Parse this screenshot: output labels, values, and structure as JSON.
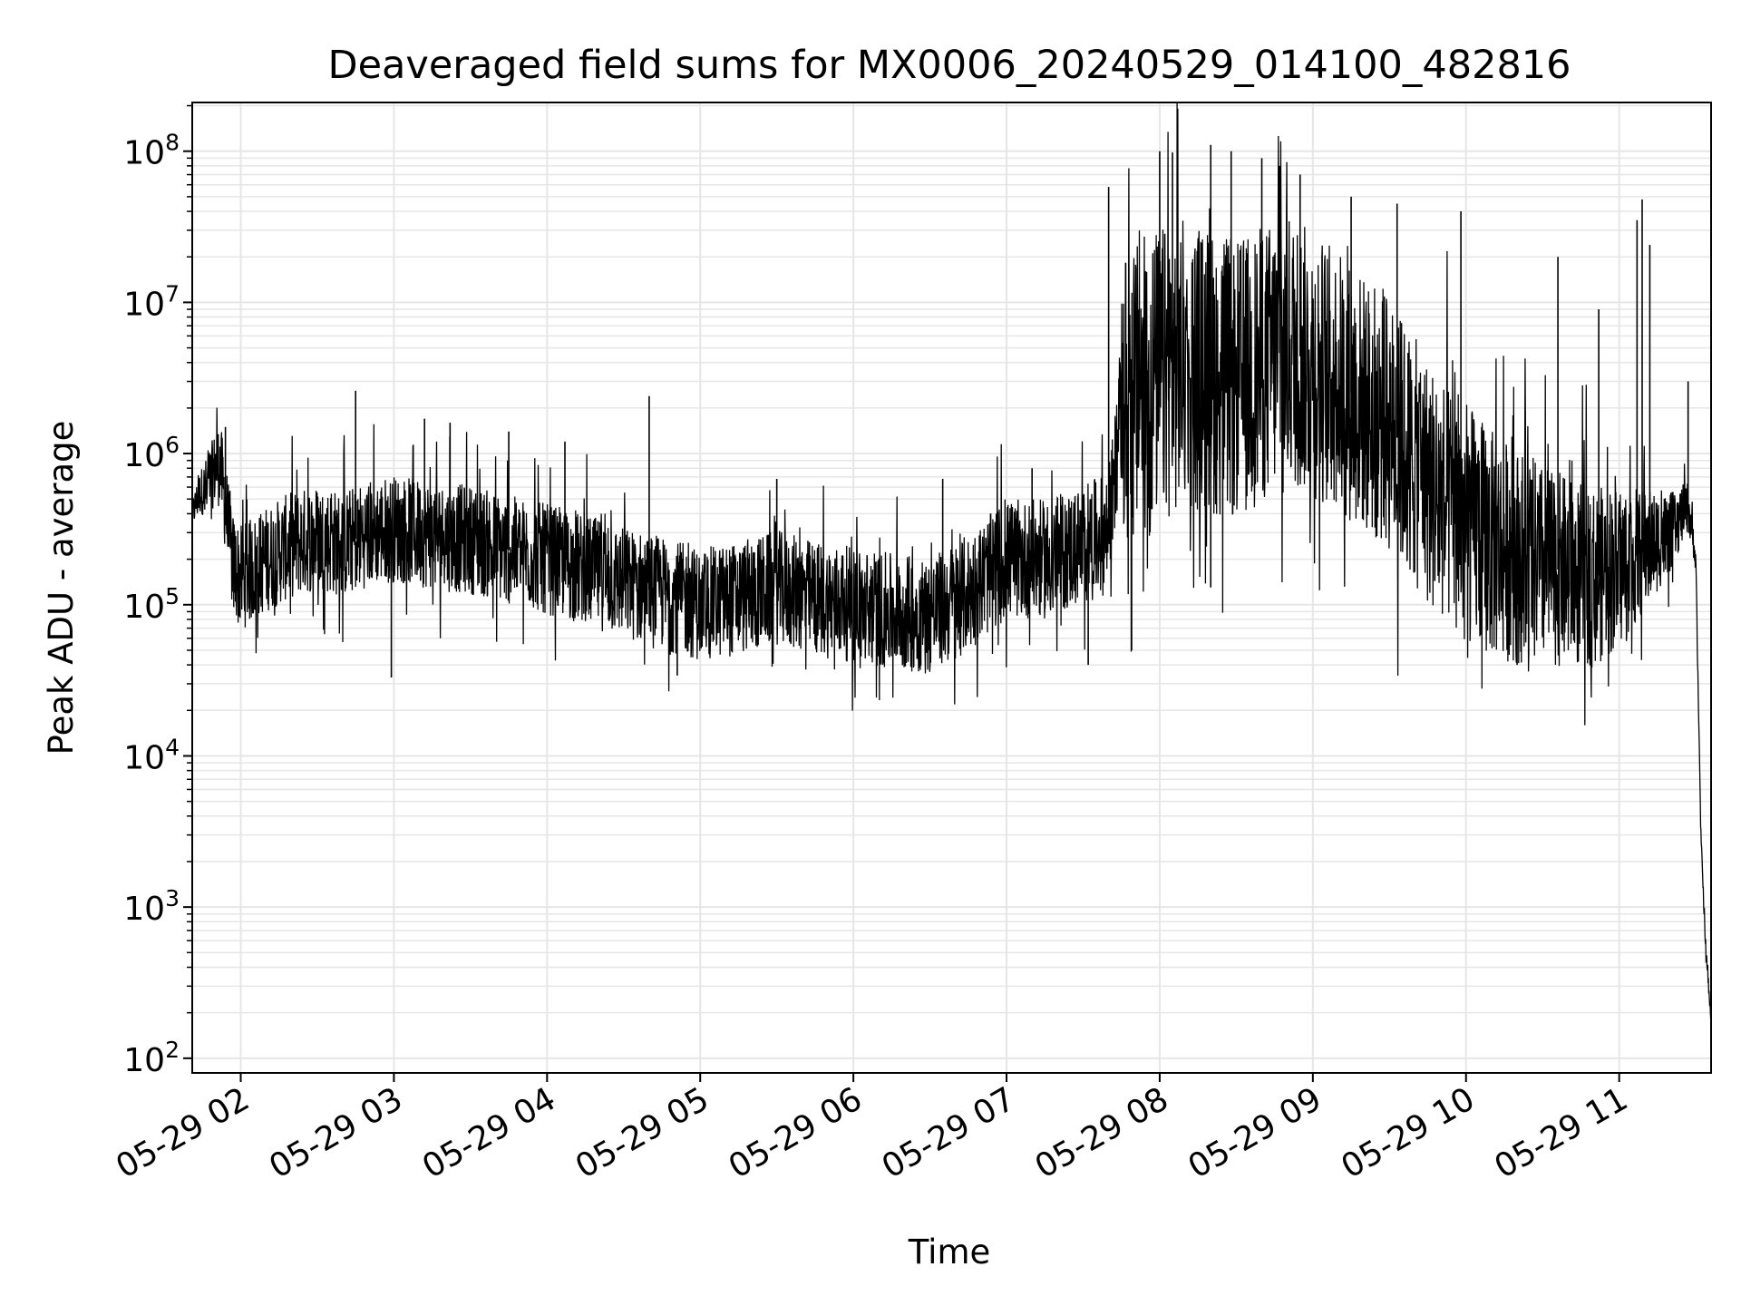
{
  "chart_data": {
    "type": "line",
    "title": "Deaveraged field sums for MX0006_20240529_014100_482816",
    "xlabel": "Time",
    "ylabel": "Peak ADU - average",
    "yscale": "log",
    "ylim": [
      80,
      210000000
    ],
    "xlim": [
      "2024-05-29 01:41",
      "2024-05-29 11:36"
    ],
    "grid": true,
    "line_color": "#000000",
    "grid_color": "#e6e6e6",
    "xticks": [
      "05-29 02",
      "05-29 03",
      "05-29 04",
      "05-29 05",
      "05-29 06",
      "05-29 07",
      "05-29 08",
      "05-29 09",
      "05-29 10",
      "05-29 11"
    ],
    "yticks": [
      {
        "value": 100,
        "base": "10",
        "exp": "2"
      },
      {
        "value": 1000,
        "base": "10",
        "exp": "3"
      },
      {
        "value": 10000,
        "base": "10",
        "exp": "4"
      },
      {
        "value": 100000,
        "base": "10",
        "exp": "5"
      },
      {
        "value": 1000000,
        "base": "10",
        "exp": "6"
      },
      {
        "value": 10000000,
        "base": "10",
        "exp": "7"
      },
      {
        "value": 100000000,
        "base": "10",
        "exp": "8"
      }
    ],
    "series": [
      {
        "points": [
          [
            "2024-05-29 01:41",
            400000
          ],
          [
            "2024-05-29 01:44",
            550000
          ],
          [
            "2024-05-29 01:47",
            620000
          ],
          [
            "2024-05-29 01:50",
            800000
          ],
          [
            "2024-05-29 01:52",
            850000
          ],
          [
            "2024-05-29 01:54",
            450000
          ],
          [
            "2024-05-29 01:57",
            180000
          ],
          [
            "2024-05-29 02:00",
            150000
          ],
          [
            "2024-05-29 02:10",
            200000
          ],
          [
            "2024-05-29 02:20",
            250000
          ],
          [
            "2024-05-29 02:30",
            280000
          ],
          [
            "2024-05-29 02:40",
            250000
          ],
          [
            "2024-05-29 02:50",
            300000
          ],
          [
            "2024-05-29 03:00",
            320000
          ],
          [
            "2024-05-29 03:10",
            300000
          ],
          [
            "2024-05-29 03:20",
            280000
          ],
          [
            "2024-05-29 03:30",
            270000
          ],
          [
            "2024-05-29 03:45",
            230000
          ],
          [
            "2024-05-29 04:00",
            200000
          ],
          [
            "2024-05-29 04:15",
            170000
          ],
          [
            "2024-05-29 04:30",
            140000
          ],
          [
            "2024-05-29 04:45",
            120000
          ],
          [
            "2024-05-29 05:00",
            100000
          ],
          [
            "2024-05-29 05:15",
            110000
          ],
          [
            "2024-05-29 05:30",
            130000
          ],
          [
            "2024-05-29 05:45",
            110000
          ],
          [
            "2024-05-29 06:00",
            100000
          ],
          [
            "2024-05-29 06:15",
            90000
          ],
          [
            "2024-05-29 06:30",
            85000
          ],
          [
            "2024-05-29 06:45",
            120000
          ],
          [
            "2024-05-29 07:00",
            200000
          ],
          [
            "2024-05-29 07:15",
            200000
          ],
          [
            "2024-05-29 07:30",
            250000
          ],
          [
            "2024-05-29 07:40",
            300000
          ],
          [
            "2024-05-29 07:45",
            2000000
          ],
          [
            "2024-05-29 07:55",
            3000000
          ],
          [
            "2024-05-29 08:10",
            4000000
          ],
          [
            "2024-05-29 08:30",
            3000000
          ],
          [
            "2024-05-29 08:50",
            5000000
          ],
          [
            "2024-05-29 09:10",
            3000000
          ],
          [
            "2024-05-29 09:30",
            1500000
          ],
          [
            "2024-05-29 09:50",
            500000
          ],
          [
            "2024-05-29 10:10",
            250000
          ],
          [
            "2024-05-29 10:30",
            180000
          ],
          [
            "2024-05-29 10:50",
            150000
          ],
          [
            "2024-05-29 11:05",
            200000
          ],
          [
            "2024-05-29 11:20",
            300000
          ],
          [
            "2024-05-29 11:27",
            450000
          ],
          [
            "2024-05-29 11:30",
            200000
          ],
          [
            "2024-05-29 11:32",
            3000
          ],
          [
            "2024-05-29 11:34",
            500
          ],
          [
            "2024-05-29 11:36",
            180
          ]
        ],
        "spikes": [
          [
            "2024-05-29 01:54",
            1500000
          ],
          [
            "2024-05-29 02:45",
            2600000
          ],
          [
            "2024-05-29 02:59",
            33000
          ],
          [
            "2024-05-29 03:12",
            1700000
          ],
          [
            "2024-05-29 03:22",
            1600000
          ],
          [
            "2024-05-29 03:45",
            1400000
          ],
          [
            "2024-05-29 04:07",
            1200000
          ],
          [
            "2024-05-29 04:40",
            2400000
          ],
          [
            "2024-05-29 04:51",
            34000
          ],
          [
            "2024-05-29 05:30",
            680000
          ],
          [
            "2024-05-29 06:35",
            680000
          ],
          [
            "2024-05-29 07:10",
            800000
          ],
          [
            "2024-05-29 07:32",
            40000
          ],
          [
            "2024-05-29 07:40",
            58000000
          ],
          [
            "2024-05-29 07:49",
            50000
          ],
          [
            "2024-05-29 08:00",
            100000000
          ],
          [
            "2024-05-29 08:05",
            98000000
          ],
          [
            "2024-05-29 08:20",
            110000000
          ],
          [
            "2024-05-29 08:28",
            100000000
          ],
          [
            "2024-05-29 08:40",
            90000000
          ],
          [
            "2024-05-29 08:47",
            80000000
          ],
          [
            "2024-05-29 08:55",
            70000000
          ],
          [
            "2024-05-29 09:15",
            50000000
          ],
          [
            "2024-05-29 09:33",
            45000000
          ],
          [
            "2024-05-29 09:58",
            40000000
          ],
          [
            "2024-05-29 10:36",
            20000000
          ],
          [
            "2024-05-29 10:52",
            9000000
          ],
          [
            "2024-05-29 11:07",
            35000000
          ],
          [
            "2024-05-29 11:09",
            48000000
          ],
          [
            "2024-05-29 11:12",
            24000000
          ],
          [
            "2024-05-29 11:27",
            3000000
          ],
          [
            "2024-05-29 10:20",
            40000
          ],
          [
            "2024-05-29 08:20",
            130000
          ]
        ],
        "noise_band_decades": [
          [
            "2024-05-29 01:41",
            0.1
          ],
          [
            "2024-05-29 01:56",
            0.35
          ],
          [
            "2024-05-29 07:44",
            0.4
          ],
          [
            "2024-05-29 07:46",
            1.0
          ],
          [
            "2024-05-29 10:00",
            0.8
          ],
          [
            "2024-05-29 11:00",
            0.55
          ],
          [
            "2024-05-29 11:28",
            0.15
          ],
          [
            "2024-05-29 11:31",
            0.05
          ]
        ]
      }
    ]
  }
}
